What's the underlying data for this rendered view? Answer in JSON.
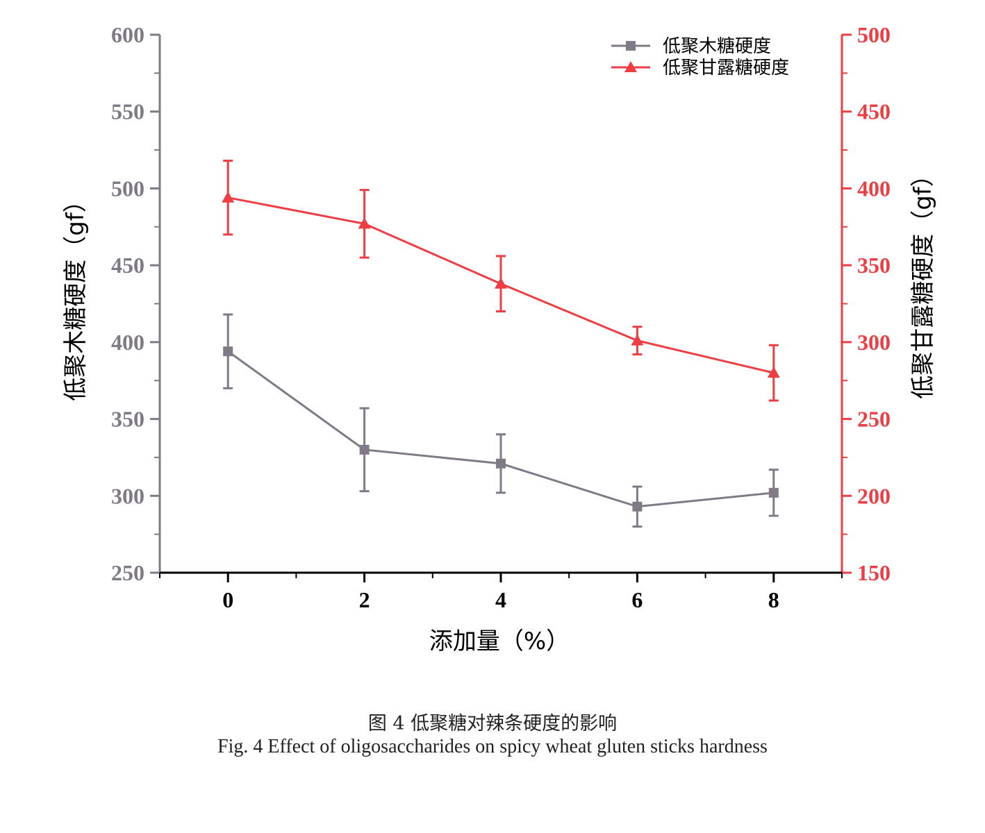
{
  "chart_data": {
    "type": "line",
    "x": [
      0,
      2,
      4,
      6,
      8
    ],
    "xlabel": "添加量（%）",
    "xlim": [
      -1,
      9
    ],
    "x_ticks": [
      "0",
      "2",
      "4",
      "6",
      "8"
    ],
    "y_left": {
      "label": "低聚木糖硬度（gf）",
      "lim": [
        250,
        600
      ],
      "ticks": [
        "250",
        "300",
        "350",
        "400",
        "450",
        "500",
        "550",
        "600"
      ],
      "color": "#7f7a86"
    },
    "y_right": {
      "label": "低聚甘露糖硬度（gf）",
      "lim": [
        150,
        500
      ],
      "ticks": [
        "150",
        "200",
        "250",
        "300",
        "350",
        "400",
        "450",
        "500"
      ],
      "color": "#ee3e44"
    },
    "series": [
      {
        "name": "低聚木糖硬度",
        "axis": "left",
        "marker": "square",
        "color": "#7f7a86",
        "values": [
          394,
          330,
          321,
          293,
          302
        ],
        "errors": [
          24,
          27,
          19,
          13,
          15
        ]
      },
      {
        "name": "低聚甘露糖硬度",
        "axis": "right",
        "marker": "triangle",
        "color": "#ee3e44",
        "values": [
          394,
          377,
          338,
          301,
          280
        ],
        "errors": [
          24,
          22,
          18,
          9,
          18
        ]
      }
    ],
    "legend_position": "top-right",
    "grid": false
  },
  "caption": {
    "cn": "图 4  低聚糖对辣条硬度的影响",
    "en": "Fig. 4 Effect of oligosaccharides on spicy wheat gluten sticks hardness"
  }
}
